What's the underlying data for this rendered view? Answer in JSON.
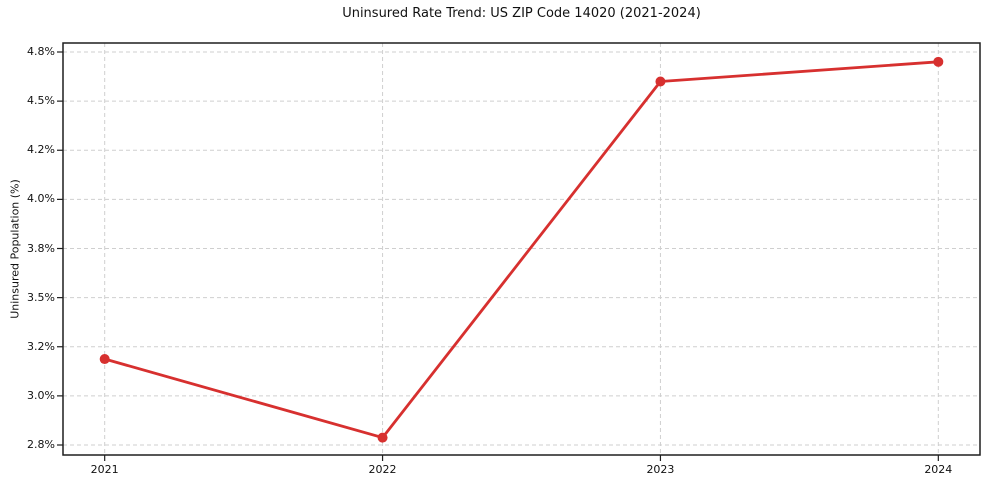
{
  "chart_data": {
    "type": "line",
    "title": "Uninsured Rate Trend: US ZIP Code 14020 (2021-2024)",
    "xlabel": "",
    "ylabel": "Uninsured Population (%)",
    "categories": [
      "2021",
      "2022",
      "2023",
      "2024"
    ],
    "series": [
      {
        "name": "Uninsured rate",
        "values": [
          3.15,
          2.83,
          4.62,
          4.74
        ],
        "color": "#d7302f",
        "marker": "circle"
      }
    ],
    "y_ticks": {
      "labels": [
        "2.8%",
        "3.0%",
        "3.2%",
        "3.5%",
        "3.8%",
        "4.0%",
        "4.2%",
        "4.5%",
        "4.8%"
      ],
      "values": [
        2.8,
        3.0,
        3.2,
        3.5,
        3.8,
        4.0,
        4.2,
        4.5,
        4.8
      ]
    },
    "ylim": [
      2.8,
      4.8
    ],
    "grid": {
      "visible": true,
      "style": "dashed",
      "color": "#cfcfcf",
      "axes": "both"
    },
    "legend": "none",
    "frame_color": "#1f1f1f"
  }
}
